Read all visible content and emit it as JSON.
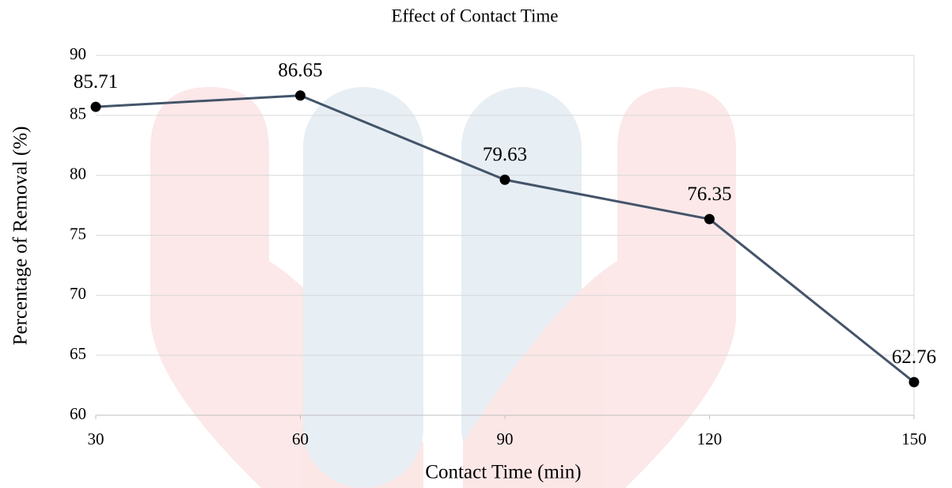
{
  "chart_data": {
    "type": "line",
    "title": "Effect of Contact Time",
    "x_label": "Contact Time (min)",
    "y_label": "Percentage of Removal (%)",
    "x": [
      30,
      60,
      90,
      120,
      150
    ],
    "series": [
      {
        "color": "#44546a",
        "values": [
          85.71,
          86.65,
          79.63,
          76.35,
          62.76
        ]
      }
    ],
    "xlim": [
      30,
      150
    ],
    "xticks": [
      30,
      60,
      90,
      120,
      150
    ],
    "ylim": [
      60,
      90
    ],
    "yticks": [
      60,
      65,
      70,
      75,
      80,
      85,
      90
    ],
    "grid": true
  }
}
